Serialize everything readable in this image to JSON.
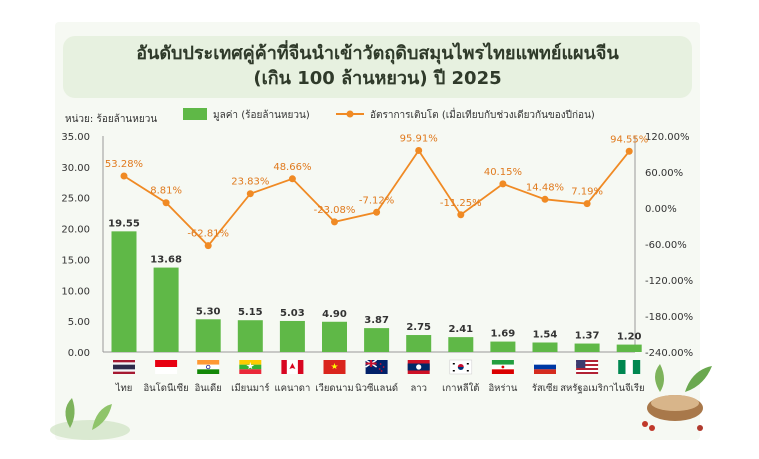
{
  "title": {
    "line1": "อันดับประเทศคู่ค้าที่จีนนำเข้าวัตถุดิบสมุนไพรไทยแพทย์แผนจีน",
    "line2": "(เกิน 100 ล้านหยวน) ปี 2025"
  },
  "colors": {
    "bar": "#5fb847",
    "line": "#f08a24",
    "value_text": "#333333",
    "pct_text": "#e07a1e"
  },
  "chart_data": {
    "type": "bar+line",
    "unit_label": "หน่วย: ร้อยล้านหยวน",
    "legend": {
      "bar": "มูลค่า (ร้อยล้านหยวน)",
      "line": "อัตราการเติบโต (เมื่อเทียบกับช่วงเดียวกันของปีก่อน)"
    },
    "categories": [
      "ไทย",
      "อินโดนีเซีย",
      "อินเดีย",
      "เมียนมาร์",
      "แคนาดา",
      "เวียดนาม",
      "นิวซีแลนด์",
      "ลาว",
      "เกาหลีใต้",
      "อิหร่าน",
      "รัสเซีย",
      "สหรัฐอเมริกา",
      "ไนจีเรีย"
    ],
    "flags": [
      "thailand-flag",
      "indonesia-flag",
      "india-flag",
      "myanmar-flag",
      "canada-flag",
      "vietnam-flag",
      "new-zealand-flag",
      "laos-flag",
      "south-korea-flag",
      "iran-flag",
      "russia-flag",
      "usa-flag",
      "nigeria-flag"
    ],
    "series": [
      {
        "name": "มูลค่า (ร้อยล้านหยวน)",
        "type": "bar",
        "axis": "left",
        "values": [
          19.55,
          13.68,
          5.3,
          5.15,
          5.03,
          4.9,
          3.87,
          2.75,
          2.41,
          1.69,
          1.54,
          1.37,
          1.2
        ],
        "labels": [
          "19.55",
          "13.68",
          "5.30",
          "5.15",
          "5.03",
          "4.90",
          "3.87",
          "2.75",
          "2.41",
          "1.69",
          "1.54",
          "1.37",
          "1.20"
        ]
      },
      {
        "name": "อัตราการเติบโต (เมื่อเทียบกับช่วงเดียวกันของปีก่อน)",
        "type": "line",
        "axis": "right",
        "values": [
          53.28,
          8.81,
          -62.81,
          23.83,
          48.66,
          -23.08,
          -7.12,
          95.91,
          -11.25,
          40.15,
          14.48,
          7.19,
          94.55
        ],
        "labels": [
          "53.28%",
          "8.81%",
          "-62.81%",
          "23.83%",
          "48.66%",
          "-23.08%",
          "-7.12%",
          "95.91%",
          "-11.25%",
          "40.15%",
          "14.48%",
          "7.19%",
          "94.55%"
        ]
      }
    ],
    "y_left": {
      "range": [
        0,
        35
      ],
      "ticks": [
        "0.00",
        "5.00",
        "10.00",
        "15.00",
        "20.00",
        "25.00",
        "30.00",
        "35.00"
      ]
    },
    "y_right": {
      "range": [
        -240,
        120
      ],
      "ticks": [
        "-240.00%",
        "-180.00%",
        "-120.00%",
        "-60.00%",
        "0.00%",
        "60.00%",
        "120.00%"
      ]
    },
    "grid": false,
    "legend_position": "top"
  }
}
